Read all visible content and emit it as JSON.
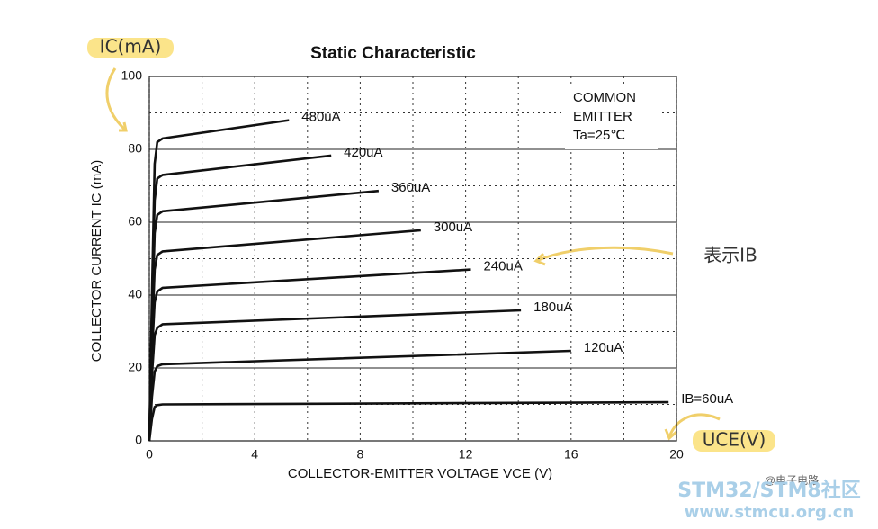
{
  "chart_data": {
    "type": "line",
    "title": "Static Characteristic",
    "x_label": "COLLECTOR-EMITTER VOLTAGE  VCE  (V)",
    "y_label": "COLLECTOR CURRENT  IC  (mA)",
    "xlim": [
      0,
      20
    ],
    "xticks": [
      0,
      4,
      8,
      12,
      16,
      20
    ],
    "ylim": [
      0,
      100
    ],
    "yticks": [
      0,
      20,
      40,
      60,
      80,
      100
    ],
    "grid": true,
    "annotation": [
      "COMMON",
      "EMITTER",
      "Ta=25℃"
    ],
    "handwritten": [
      "IC(mA)",
      "表示IB",
      "UCE(V)"
    ],
    "watermark": [
      "@电子电路",
      "STM32/STM8社区",
      "www.stmcu.org.cn"
    ],
    "series": [
      {
        "name": "480uA",
        "color": "#111111",
        "x": [
          0,
          0.1,
          0.2,
          0.3,
          0.5,
          5.3
        ],
        "values": [
          0,
          40,
          76,
          82,
          83,
          88
        ]
      },
      {
        "name": "420uA",
        "color": "#111111",
        "x": [
          0,
          0.1,
          0.2,
          0.3,
          0.5,
          6.9
        ],
        "values": [
          0,
          36,
          66,
          72,
          73,
          78.3
        ]
      },
      {
        "name": "360uA",
        "color": "#111111",
        "x": [
          0,
          0.1,
          0.2,
          0.3,
          0.5,
          8.7
        ],
        "values": [
          0,
          32,
          57,
          62,
          63,
          68.6
        ]
      },
      {
        "name": "300uA",
        "color": "#111111",
        "x": [
          0,
          0.1,
          0.2,
          0.3,
          0.5,
          10.3
        ],
        "values": [
          0,
          28,
          47,
          51,
          52,
          57.8
        ]
      },
      {
        "name": "240uA",
        "color": "#111111",
        "x": [
          0,
          0.1,
          0.2,
          0.3,
          0.5,
          12.2
        ],
        "values": [
          0,
          24,
          38,
          41,
          42,
          47
        ]
      },
      {
        "name": "180uA",
        "color": "#111111",
        "x": [
          0,
          0.1,
          0.2,
          0.3,
          0.5,
          14.1
        ],
        "values": [
          0,
          18,
          29,
          31,
          32,
          35.8
        ]
      },
      {
        "name": "120uA",
        "color": "#111111",
        "x": [
          0,
          0.1,
          0.2,
          0.3,
          0.5,
          16
        ],
        "values": [
          0,
          12,
          19,
          20.5,
          21,
          24.7
        ]
      },
      {
        "name": "IB=60uA",
        "color": "#111111",
        "x": [
          0,
          0.1,
          0.2,
          0.3,
          0.5,
          19.7
        ],
        "values": [
          0,
          6,
          9.3,
          9.8,
          10,
          10.6
        ]
      }
    ]
  }
}
